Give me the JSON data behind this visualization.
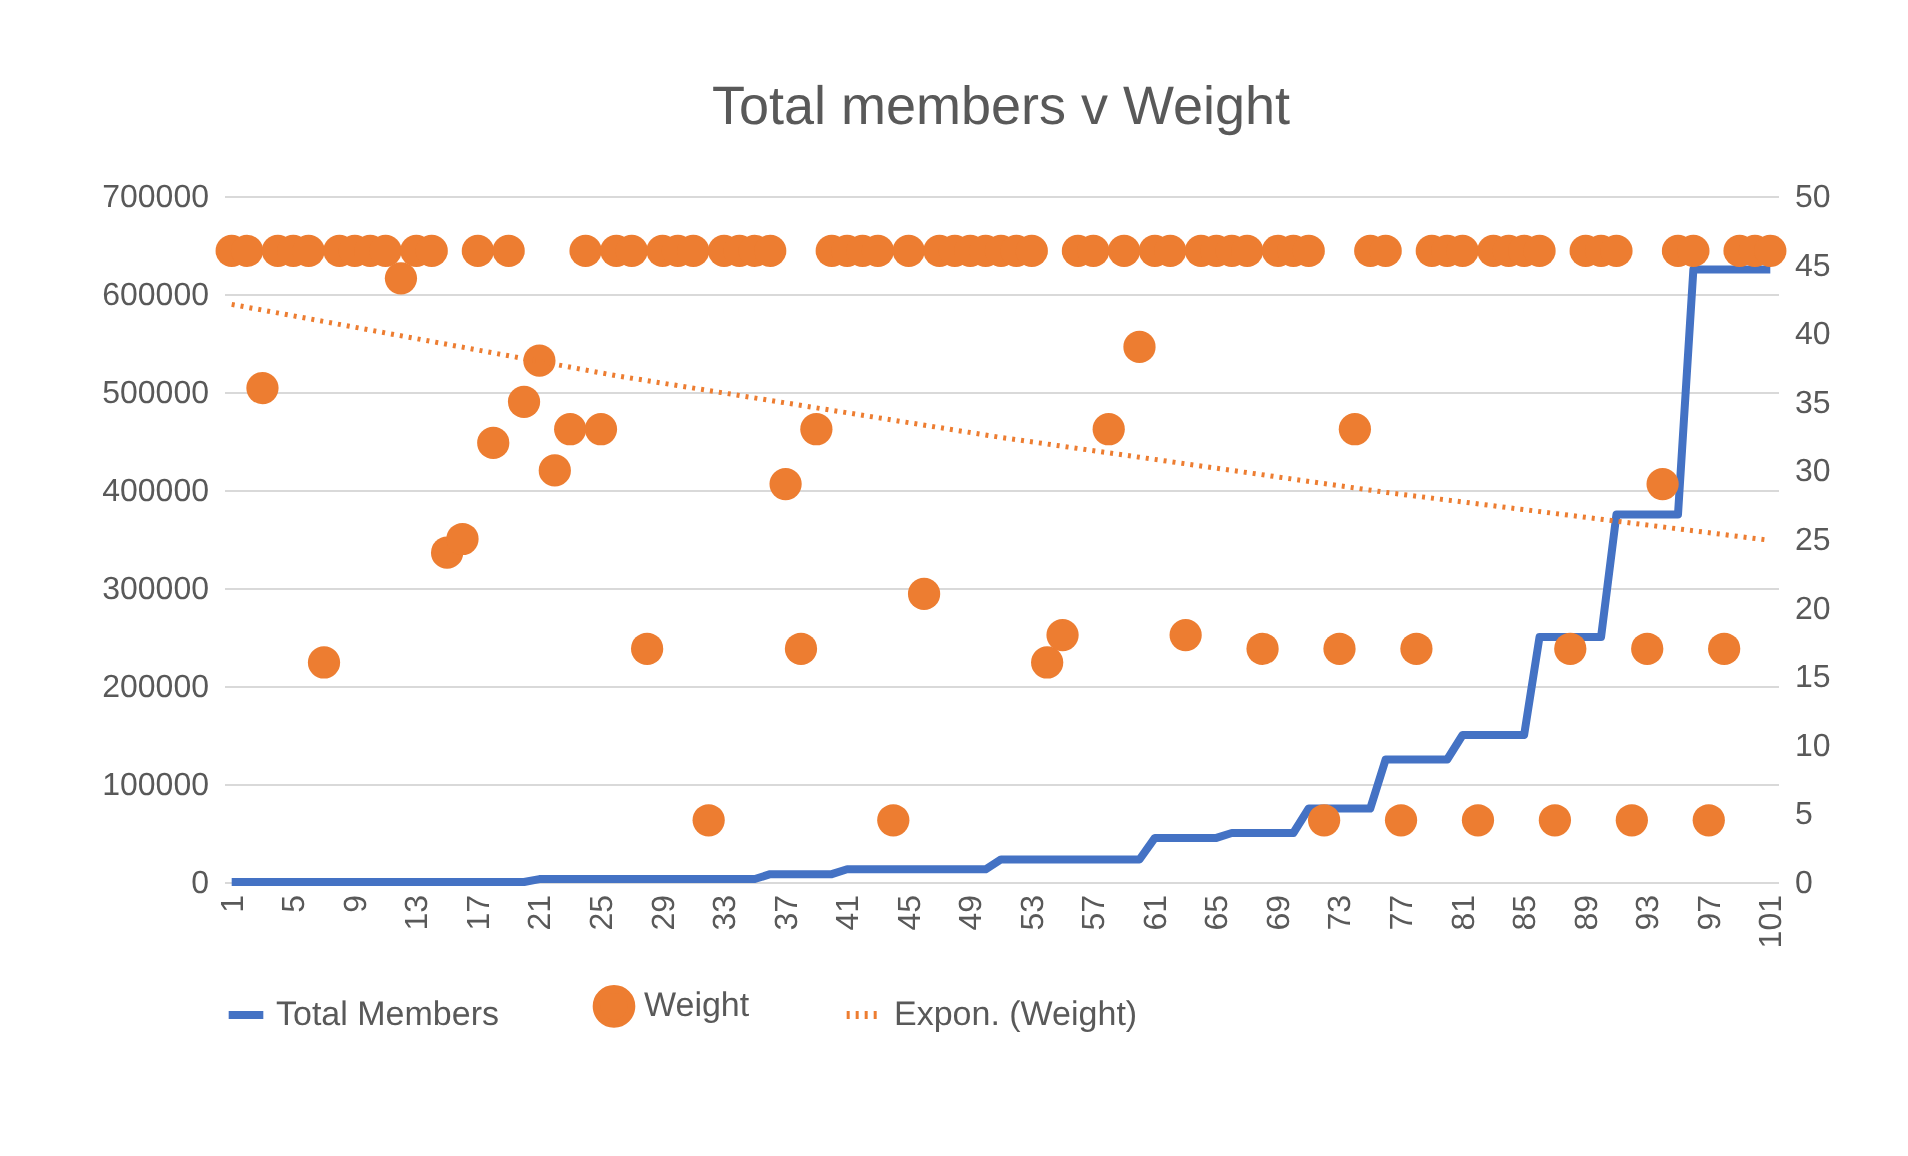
{
  "chart_data": {
    "type": "line",
    "title": "Total members v Weight",
    "x": [
      1,
      2,
      3,
      4,
      5,
      6,
      7,
      8,
      9,
      10,
      11,
      12,
      13,
      14,
      15,
      16,
      17,
      18,
      19,
      20,
      21,
      22,
      23,
      24,
      25,
      26,
      27,
      28,
      29,
      30,
      31,
      32,
      33,
      34,
      35,
      36,
      37,
      38,
      39,
      40,
      41,
      42,
      43,
      44,
      45,
      46,
      47,
      48,
      49,
      50,
      51,
      52,
      53,
      54,
      55,
      56,
      57,
      58,
      59,
      60,
      61,
      62,
      63,
      64,
      65,
      66,
      67,
      68,
      69,
      70,
      71,
      72,
      73,
      74,
      75,
      76,
      77,
      78,
      79,
      80,
      81,
      82,
      83,
      84,
      85,
      86,
      87,
      88,
      89,
      90,
      91,
      92,
      93,
      94,
      95,
      96,
      97,
      98,
      99,
      100,
      101
    ],
    "xlim": [
      0.5,
      101.5
    ],
    "xticks": [
      1,
      5,
      9,
      13,
      17,
      21,
      25,
      29,
      33,
      37,
      41,
      45,
      49,
      53,
      57,
      61,
      65,
      69,
      73,
      77,
      81,
      85,
      89,
      93,
      97,
      101
    ],
    "ylim": [
      0,
      700000
    ],
    "yticks": [
      0,
      100000,
      200000,
      300000,
      400000,
      500000,
      600000,
      700000
    ],
    "y2lim": [
      0,
      50
    ],
    "y2ticks": [
      0,
      5,
      10,
      15,
      20,
      25,
      30,
      35,
      40,
      45,
      50
    ],
    "grid": "y",
    "legend": "bottom",
    "series": [
      {
        "name": "Total Members",
        "marker": "none",
        "color": "#4472c4",
        "values": [
          0,
          0,
          0,
          0,
          0,
          0,
          0,
          0,
          0,
          0,
          0,
          0,
          0,
          0,
          0,
          0,
          0,
          0,
          0,
          0,
          3000,
          3000,
          3000,
          3000,
          3000,
          3000,
          3000,
          3000,
          3000,
          3000,
          3000,
          3000,
          3000,
          3000,
          3000,
          8000,
          8000,
          8000,
          8000,
          8000,
          13000,
          13000,
          13000,
          13000,
          13000,
          13000,
          13000,
          13000,
          13000,
          13000,
          23000,
          23000,
          23000,
          23000,
          23000,
          23000,
          23000,
          23000,
          23000,
          23000,
          45000,
          45000,
          45000,
          45000,
          45000,
          50000,
          50000,
          50000,
          50000,
          50000,
          75000,
          75000,
          75000,
          75000,
          75000,
          125000,
          125000,
          125000,
          125000,
          125000,
          150000,
          150000,
          150000,
          150000,
          150000,
          250000,
          250000,
          250000,
          250000,
          250000,
          375000,
          375000,
          375000,
          375000,
          375000,
          625000,
          625000,
          625000,
          625000,
          625000,
          625000
        ]
      },
      {
        "name": "Weight",
        "type": "scatter",
        "axis": "y2",
        "marker": "circle",
        "color": "#ed7d31",
        "values": [
          46,
          46,
          36,
          46,
          46,
          46,
          16,
          46,
          46,
          46,
          46,
          44,
          46,
          46,
          24,
          25,
          46,
          32,
          46,
          35,
          38,
          30,
          33,
          46,
          33,
          46,
          46,
          17,
          46,
          46,
          46,
          4.5,
          46,
          46,
          46,
          46,
          29,
          17,
          33,
          46,
          46,
          46,
          46,
          4.5,
          46,
          21,
          46,
          46,
          46,
          46,
          46,
          46,
          46,
          16,
          18,
          46,
          46,
          33,
          46,
          39,
          46,
          46,
          18,
          46,
          46,
          46,
          46,
          17,
          46,
          46,
          46,
          4.5,
          17,
          33,
          46,
          46,
          4.5,
          17,
          46,
          46,
          46,
          4.5,
          46,
          46,
          46,
          46,
          4.5,
          17,
          46,
          46,
          46,
          4.5,
          17,
          29,
          46,
          46,
          4.5,
          17,
          46,
          46,
          46
        ]
      },
      {
        "name": "Expon. (Weight)",
        "type": "line",
        "axis": "y2",
        "marker": "none",
        "line_style": "dotted",
        "color": "#ed7d31",
        "x": [
          1,
          26,
          51,
          76,
          101
        ],
        "values": [
          42.1,
          36.9,
          32.4,
          28.4,
          24.9
        ]
      }
    ]
  }
}
